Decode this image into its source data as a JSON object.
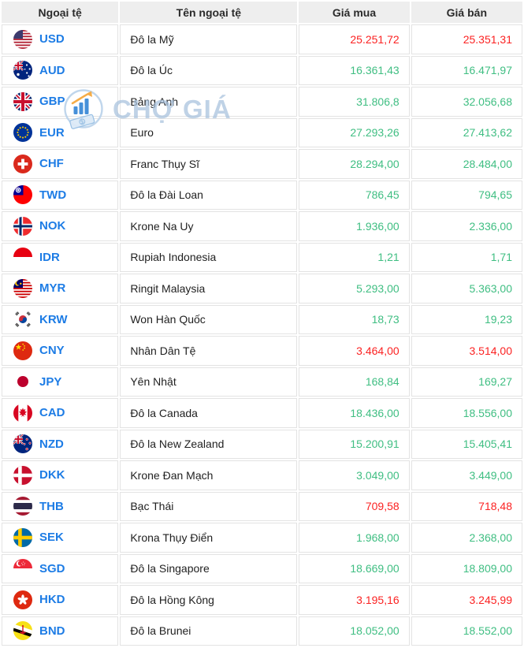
{
  "colors": {
    "code_blue": "#1d7ce5",
    "price_up_green": "#3fbe82",
    "price_down_red": "#fb2222",
    "header_bg": "#eeeeee"
  },
  "watermark": {
    "text": "CHỢ GIÁ"
  },
  "table": {
    "headers": [
      "Ngoại tệ",
      "Tên ngoại tệ",
      "Giá mua",
      "Giá bán"
    ],
    "rows": [
      {
        "code": "USD",
        "name": "Đô la Mỹ",
        "buy": "25.251,72",
        "sell": "25.351,31",
        "trend": "down"
      },
      {
        "code": "AUD",
        "name": "Đô la Úc",
        "buy": "16.361,43",
        "sell": "16.471,97",
        "trend": "up"
      },
      {
        "code": "GBP",
        "name": "Bảng Anh",
        "buy": "31.806,8",
        "sell": "32.056,68",
        "trend": "up"
      },
      {
        "code": "EUR",
        "name": "Euro",
        "buy": "27.293,26",
        "sell": "27.413,62",
        "trend": "up"
      },
      {
        "code": "CHF",
        "name": "Franc Thụy Sĩ",
        "buy": "28.294,00",
        "sell": "28.484,00",
        "trend": "up"
      },
      {
        "code": "TWD",
        "name": "Đô la Đài Loan",
        "buy": "786,45",
        "sell": "794,65",
        "trend": "up"
      },
      {
        "code": "NOK",
        "name": "Krone Na Uy",
        "buy": "1.936,00",
        "sell": "2.336,00",
        "trend": "up"
      },
      {
        "code": "IDR",
        "name": "Rupiah Indonesia",
        "buy": "1,21",
        "sell": "1,71",
        "trend": "up"
      },
      {
        "code": "MYR",
        "name": "Ringit Malaysia",
        "buy": "5.293,00",
        "sell": "5.363,00",
        "trend": "up"
      },
      {
        "code": "KRW",
        "name": "Won Hàn Quốc",
        "buy": "18,73",
        "sell": "19,23",
        "trend": "up"
      },
      {
        "code": "CNY",
        "name": "Nhân Dân Tệ",
        "buy": "3.464,00",
        "sell": "3.514,00",
        "trend": "down"
      },
      {
        "code": "JPY",
        "name": "Yên Nhật",
        "buy": "168,84",
        "sell": "169,27",
        "trend": "up"
      },
      {
        "code": "CAD",
        "name": "Đô la Canada",
        "buy": "18.436,00",
        "sell": "18.556,00",
        "trend": "up"
      },
      {
        "code": "NZD",
        "name": "Đô la New Zealand",
        "buy": "15.200,91",
        "sell": "15.405,41",
        "trend": "up"
      },
      {
        "code": "DKK",
        "name": "Krone Đan Mạch",
        "buy": "3.049,00",
        "sell": "3.449,00",
        "trend": "up"
      },
      {
        "code": "THB",
        "name": "Bạc Thái",
        "buy": "709,58",
        "sell": "718,48",
        "trend": "down"
      },
      {
        "code": "SEK",
        "name": "Krona Thụy Điển",
        "buy": "1.968,00",
        "sell": "2.368,00",
        "trend": "up"
      },
      {
        "code": "SGD",
        "name": "Đô la Singapore",
        "buy": "18.669,00",
        "sell": "18.809,00",
        "trend": "up"
      },
      {
        "code": "HKD",
        "name": "Đô la Hồng Kông",
        "buy": "3.195,16",
        "sell": "3.245,99",
        "trend": "down"
      },
      {
        "code": "BND",
        "name": "Đô la Brunei",
        "buy": "18.052,00",
        "sell": "18.552,00",
        "trend": "up"
      }
    ]
  }
}
